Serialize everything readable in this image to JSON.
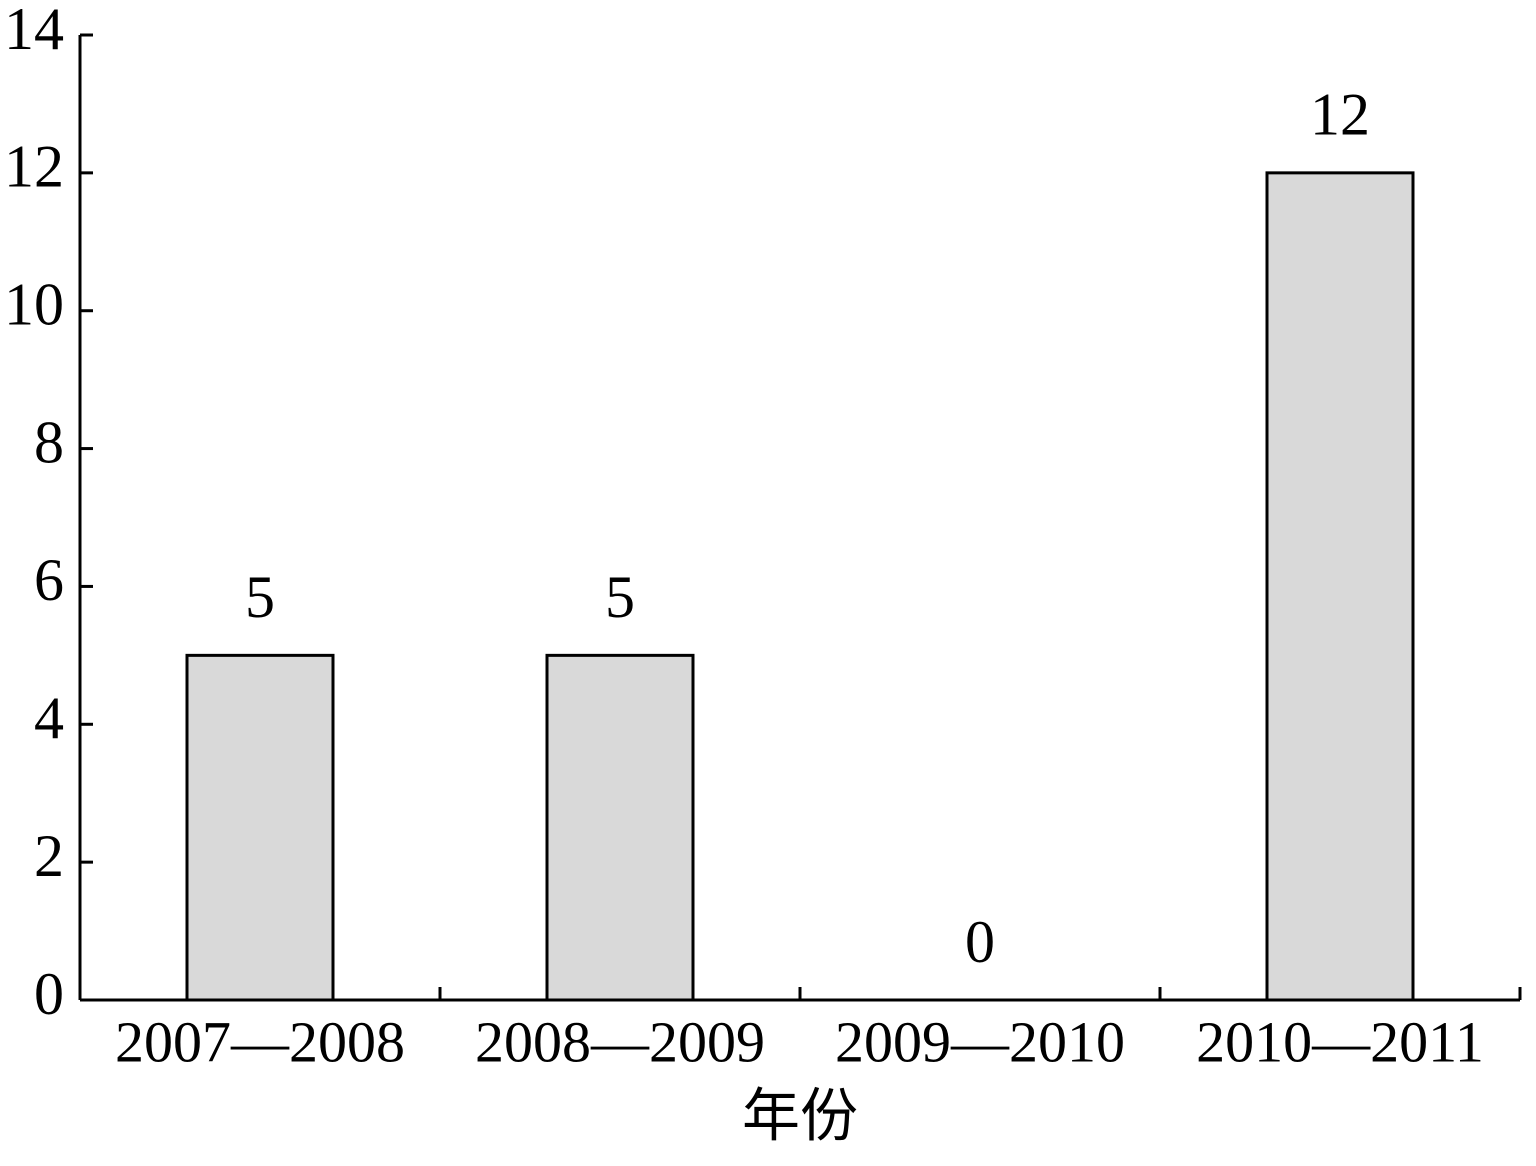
{
  "chart_data": {
    "type": "bar",
    "x_label": "年份",
    "categories": [
      "2007—2008",
      "2008—2009",
      "2009—2010",
      "2010—2011"
    ],
    "values": [
      5,
      5,
      0,
      12
    ],
    "color": "#d9d9d9",
    "ylim": [
      0,
      14
    ],
    "yticks": [
      0,
      2,
      4,
      6,
      8,
      10,
      12,
      14
    ],
    "grid": false
  }
}
